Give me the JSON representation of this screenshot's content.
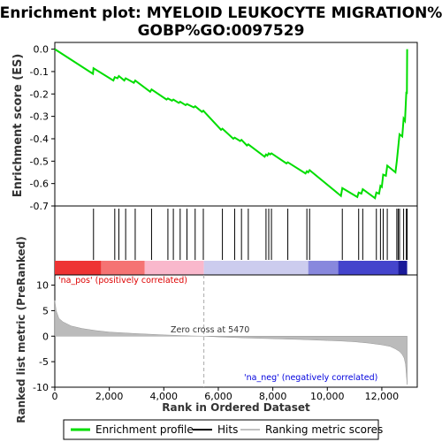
{
  "chart_data": {
    "type": "line",
    "title_line1": "Enrichment plot: MYELOID LEUKOCYTE MIGRATION%",
    "title_line2": "GOBP%GO:0097529",
    "top_panel": {
      "ylabel": "Enrichment score (ES)",
      "ylim": [
        -0.7,
        0.03
      ],
      "yticks": [
        "0.0",
        "-0.1",
        "-0.2",
        "-0.3",
        "-0.4",
        "-0.5",
        "-0.6",
        "-0.7"
      ],
      "ytick_values": [
        0.0,
        -0.1,
        -0.2,
        -0.3,
        -0.4,
        -0.5,
        -0.6,
        -0.7
      ],
      "series": [
        {
          "name": "Enrichment profile",
          "color": "#00dd00",
          "x": [
            0,
            1400,
            1420,
            2150,
            2200,
            2300,
            2350,
            2550,
            2600,
            2900,
            2950,
            3500,
            3550,
            4100,
            4150,
            4300,
            4350,
            4550,
            4600,
            4800,
            4850,
            5100,
            5150,
            5400,
            5450,
            6100,
            6150,
            6550,
            6600,
            6800,
            6850,
            7050,
            7100,
            7700,
            7750,
            7800,
            7850,
            7900,
            7950,
            8500,
            8550,
            9200,
            9250,
            9300,
            9350,
            10500,
            10550,
            11100,
            11150,
            11250,
            11300,
            11750,
            11800,
            11900,
            11950,
            12000,
            12050,
            12150,
            12200,
            12500,
            12550,
            12600,
            12650,
            12750,
            12800,
            12850,
            12900,
            12920,
            12930
          ],
          "y": [
            0.0,
            -0.11,
            -0.085,
            -0.14,
            -0.125,
            -0.13,
            -0.12,
            -0.14,
            -0.13,
            -0.15,
            -0.14,
            -0.19,
            -0.18,
            -0.225,
            -0.22,
            -0.23,
            -0.225,
            -0.24,
            -0.235,
            -0.25,
            -0.245,
            -0.26,
            -0.255,
            -0.28,
            -0.275,
            -0.36,
            -0.355,
            -0.4,
            -0.395,
            -0.41,
            -0.405,
            -0.43,
            -0.425,
            -0.48,
            -0.47,
            -0.475,
            -0.465,
            -0.47,
            -0.465,
            -0.51,
            -0.505,
            -0.555,
            -0.545,
            -0.55,
            -0.54,
            -0.655,
            -0.62,
            -0.66,
            -0.64,
            -0.645,
            -0.625,
            -0.665,
            -0.64,
            -0.645,
            -0.61,
            -0.615,
            -0.56,
            -0.565,
            -0.52,
            -0.55,
            -0.5,
            -0.44,
            -0.38,
            -0.39,
            -0.31,
            -0.32,
            -0.19,
            -0.2,
            0.0
          ]
        }
      ]
    },
    "hits_panel": {
      "legend_name": "Hits",
      "positions": [
        1420,
        2200,
        2350,
        2600,
        2950,
        3550,
        4150,
        4350,
        4600,
        4850,
        5150,
        5450,
        6150,
        6600,
        6850,
        7100,
        7750,
        7850,
        7950,
        8550,
        9250,
        9350,
        10550,
        11150,
        11300,
        11800,
        11950,
        12050,
        12200,
        12550,
        12600,
        12650,
        12800,
        12900,
        12930
      ]
    },
    "heatmap_bar": {
      "segments": [
        {
          "from": 0,
          "to": 1700,
          "color": "#ee3333"
        },
        {
          "from": 1700,
          "to": 3300,
          "color": "#f57373"
        },
        {
          "from": 3300,
          "to": 5470,
          "color": "#f9b8cc"
        },
        {
          "from": 5470,
          "to": 9300,
          "color": "#ccccee"
        },
        {
          "from": 9300,
          "to": 10400,
          "color": "#8888dd"
        },
        {
          "from": 10400,
          "to": 12600,
          "color": "#4444cc"
        },
        {
          "from": 12600,
          "to": 12930,
          "color": "#1a1a9a"
        }
      ]
    },
    "bottom_panel": {
      "ylabel": "Ranked list metric (PreRanked)",
      "ylim": [
        -10,
        12
      ],
      "yticks": [
        "10",
        "5",
        "0",
        "-5",
        "-10"
      ],
      "ytick_values": [
        10,
        5,
        0,
        -5,
        -10
      ],
      "metric_series_name": "Ranking metric scores",
      "metric_x": [
        0,
        50,
        150,
        300,
        600,
        1000,
        1500,
        2000,
        3000,
        4000,
        5000,
        5470,
        6000,
        7000,
        8000,
        9000,
        10000,
        10500,
        11000,
        11500,
        12000,
        12300,
        12500,
        12650,
        12750,
        12820,
        12870,
        12900,
        12930
      ],
      "metric_y": [
        7.0,
        5.0,
        3.5,
        2.8,
        2.0,
        1.5,
        1.1,
        0.8,
        0.5,
        0.25,
        0.05,
        0.0,
        -0.15,
        -0.35,
        -0.5,
        -0.65,
        -0.85,
        -0.95,
        -1.1,
        -1.35,
        -1.7,
        -2.0,
        -2.5,
        -3.0,
        -3.6,
        -4.3,
        -5.5,
        -7.5,
        -9.5
      ],
      "pos_label": "'na_pos' (positively correlated)",
      "neg_label": "'na_neg' (negatively correlated)",
      "zero_cross_label": "Zero cross at 5470",
      "zero_cross": 5470
    },
    "xaxis": {
      "xlabel": "Rank in Ordered Dataset",
      "xlim": [
        0,
        13300
      ],
      "xticks": [
        "0",
        "2,000",
        "4,000",
        "6,000",
        "8,000",
        "10,000",
        "12,000"
      ],
      "xtick_values": [
        0,
        2000,
        4000,
        6000,
        8000,
        10000,
        12000
      ]
    },
    "legend": {
      "items": [
        {
          "label": "Enrichment profile",
          "color": "#00dd00"
        },
        {
          "label": "Hits",
          "color": "#000000"
        },
        {
          "label": "Ranking metric scores",
          "color": "#c0c0c0"
        }
      ]
    },
    "colors": {
      "pos_label": "#dd0000",
      "neg_label": "#0000dd",
      "metric_fill": "#bbbbbb",
      "zero_line": "#aaaaaa"
    }
  }
}
